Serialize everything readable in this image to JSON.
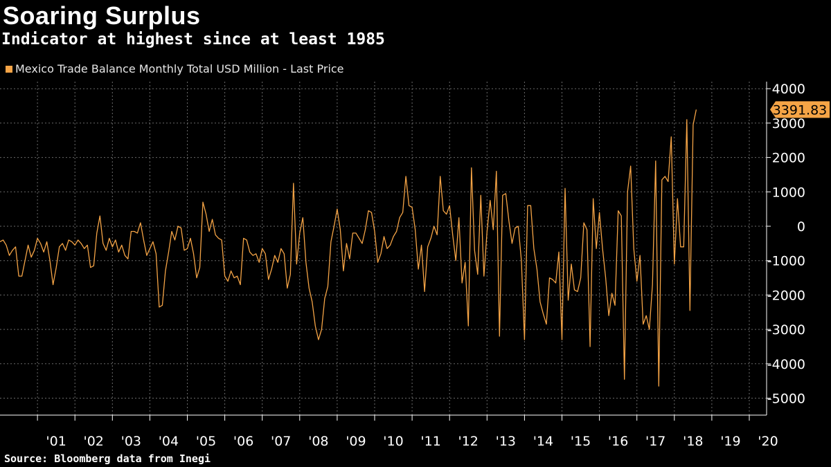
{
  "title": "Soaring Surplus",
  "subtitle": "Indicator at highest since at least 1985",
  "source": "Source: Bloomberg data from Inegi",
  "colors": {
    "background": "#000000",
    "series": "#f5a446",
    "grid": "#6b6b6b",
    "text": "#ffffff"
  },
  "chart_data": {
    "type": "line",
    "legend": "Mexico Trade Balance Monthly Total USD Million - Last Price",
    "legend_position": "top-left",
    "grid": true,
    "last_value_label": "3391.83",
    "y_axis_side": "right",
    "ylim": [
      -5500,
      4200
    ],
    "yticks": [
      4000,
      3000,
      2000,
      1000,
      0,
      -1000,
      -2000,
      -3000,
      -4000,
      -5000
    ],
    "ytick_labels": [
      "4000",
      "3000",
      "2000",
      "1000",
      "0",
      "-1000",
      "-2000",
      "-3000",
      "-4000",
      "-5000"
    ],
    "xlim": [
      "2000-01",
      "2020-05"
    ],
    "xtick_labels": [
      "'01",
      "'02",
      "'03",
      "'04",
      "'05",
      "'06",
      "'07",
      "'08",
      "'09",
      "'10",
      "'11",
      "'12",
      "'13",
      "'14",
      "'15",
      "'16",
      "'17",
      "'18",
      "'19",
      "'20"
    ],
    "series": [
      {
        "start": "2000-01",
        "frequency": "monthly",
        "values": [
          -450,
          -400,
          -550,
          -850,
          -700,
          -600,
          -1450,
          -1450,
          -1000,
          -550,
          -900,
          -700,
          -350,
          -500,
          -750,
          -450,
          -1000,
          -1700,
          -1200,
          -600,
          -500,
          -700,
          -400,
          -450,
          -550,
          -400,
          -500,
          -650,
          -550,
          -1200,
          -1150,
          -200,
          300,
          -500,
          -700,
          -350,
          -600,
          -400,
          -750,
          -550,
          -850,
          -950,
          -150,
          -150,
          -200,
          100,
          -400,
          -850,
          -650,
          -450,
          -800,
          -2350,
          -2300,
          -1300,
          -750,
          -150,
          -400,
          0,
          -50,
          -700,
          -650,
          -350,
          -800,
          -1500,
          -1200,
          700,
          350,
          -150,
          200,
          -250,
          -350,
          -400,
          -1450,
          -1600,
          -1300,
          -1500,
          -1450,
          -1700,
          -350,
          -400,
          -750,
          -850,
          -800,
          -1050,
          -650,
          -800,
          -1550,
          -1250,
          -850,
          -1050,
          -650,
          -800,
          -1800,
          -1400,
          1250,
          -1100,
          -200,
          250,
          -1050,
          -1800,
          -2200,
          -2900,
          -3300,
          -3000,
          -2100,
          -1750,
          -450,
          0,
          500,
          -100,
          -1300,
          -500,
          -950,
          -200,
          -200,
          -350,
          -500,
          -100,
          450,
          400,
          -150,
          -1050,
          -800,
          -300,
          -650,
          -550,
          -300,
          -150,
          250,
          400,
          1450,
          600,
          550,
          -100,
          -1250,
          -550,
          -1900,
          -600,
          -350,
          0,
          -250,
          1450,
          450,
          350,
          600,
          -250,
          -1000,
          250,
          -1650,
          -1050,
          -2900,
          1700,
          -700,
          -1400,
          900,
          -1450,
          -150,
          750,
          -100,
          1600,
          -3200,
          900,
          950,
          150,
          -500,
          -50,
          0,
          -1000,
          -3300,
          600,
          600,
          -650,
          -1250,
          -2200,
          -2550,
          -2850,
          -1500,
          -1550,
          -1650,
          -750,
          -3300,
          1100,
          -2150,
          -1100,
          -1850,
          -1900,
          -1500,
          100,
          -100,
          -3500,
          800,
          -650,
          400,
          -650,
          -1500,
          -2600,
          -1950,
          -2300,
          450,
          300,
          -4450,
          1000,
          1750,
          -650,
          -1600,
          -850,
          -2850,
          -2600,
          -3000,
          -1700,
          1900,
          -4650,
          1350,
          1450,
          1300,
          2600,
          -1100,
          800,
          -600,
          -600,
          3100,
          -2450,
          2950,
          3391.83
        ]
      }
    ]
  }
}
